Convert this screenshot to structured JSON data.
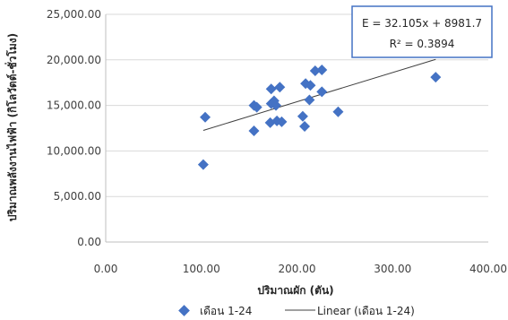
{
  "chart_data": {
    "type": "scatter",
    "xlabel": "ปริมาณผัก (ตัน)",
    "ylabel": "ปริมาณพลังงานไฟฟ้า (กิโลวัตต์-ชั่วโมง)",
    "xlim": [
      0,
      400
    ],
    "ylim": [
      0,
      25000
    ],
    "x_ticks": [
      "0.00",
      "100.00",
      "200.00",
      "300.00",
      "400.00"
    ],
    "y_ticks": [
      "0.00",
      "5,000.00",
      "10,000.00",
      "15,000.00",
      "20,000.00",
      "25,000.00"
    ],
    "grid": "horizontal",
    "series": [
      {
        "name": "เดือน 1-24",
        "color": "#4472c4",
        "marker": "diamond",
        "points": [
          {
            "x": 102,
            "y": 8500
          },
          {
            "x": 104,
            "y": 13700
          },
          {
            "x": 155,
            "y": 12200
          },
          {
            "x": 155,
            "y": 15000
          },
          {
            "x": 158,
            "y": 14800
          },
          {
            "x": 172,
            "y": 13100
          },
          {
            "x": 173,
            "y": 16800
          },
          {
            "x": 173,
            "y": 15200
          },
          {
            "x": 176,
            "y": 15500
          },
          {
            "x": 178,
            "y": 15000
          },
          {
            "x": 179,
            "y": 13300
          },
          {
            "x": 182,
            "y": 17000
          },
          {
            "x": 184,
            "y": 13200
          },
          {
            "x": 206,
            "y": 13800
          },
          {
            "x": 208,
            "y": 12700
          },
          {
            "x": 209,
            "y": 17400
          },
          {
            "x": 213,
            "y": 15600
          },
          {
            "x": 214,
            "y": 17200
          },
          {
            "x": 219,
            "y": 18800
          },
          {
            "x": 226,
            "y": 18900
          },
          {
            "x": 226,
            "y": 16500
          },
          {
            "x": 243,
            "y": 14300
          },
          {
            "x": 345,
            "y": 18100
          }
        ]
      }
    ],
    "trendline": {
      "name": "Linear (เดือน 1-24)",
      "slope": 32.105,
      "intercept": 8981.7,
      "x_range": [
        102,
        345
      ],
      "color": "#404040"
    },
    "annotation": {
      "equation": "E = 32.105x + 8981.7",
      "r_squared": "R² = 0.3894"
    },
    "legend": {
      "position": "bottom",
      "series_label": "เดือน 1-24",
      "trend_label": "Linear (เดือน 1-24)"
    }
  }
}
